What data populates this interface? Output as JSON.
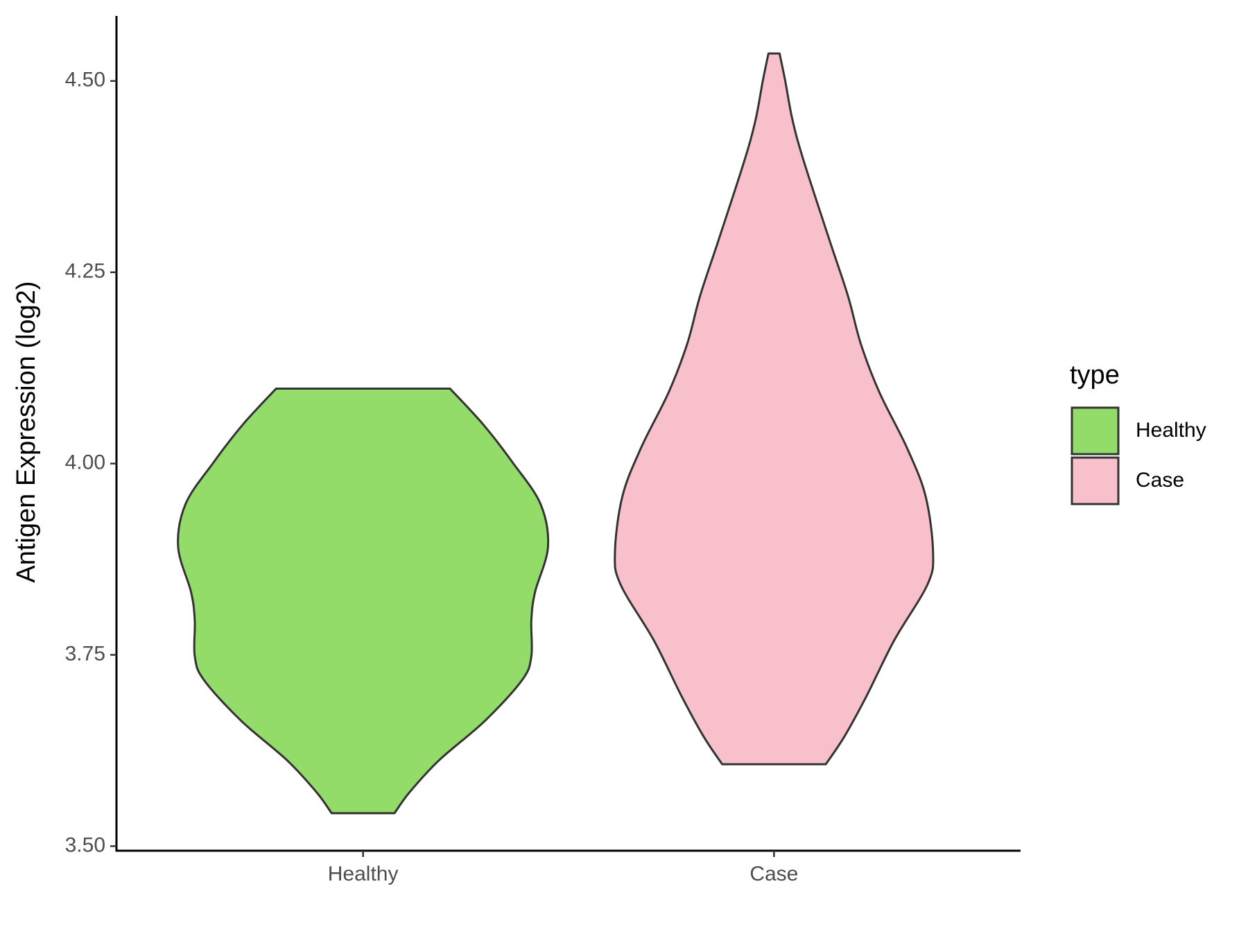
{
  "chart_data": {
    "type": "violin",
    "y_label": "Antigen Expression (log2)",
    "categories": [
      "Healthy",
      "Case"
    ],
    "legend_title": "type",
    "legend_position": "right",
    "ylim": [
      3.494,
      4.585
    ],
    "yticks": [
      {
        "value": 3.5,
        "label": "3.50"
      },
      {
        "value": 3.75,
        "label": "3.75"
      },
      {
        "value": 4.0,
        "label": "4.00"
      },
      {
        "value": 4.25,
        "label": "4.25"
      },
      {
        "value": 4.5,
        "label": "4.50"
      }
    ],
    "series": [
      {
        "name": "Healthy",
        "color": "#93dc6a",
        "values": [
          4.098,
          4.051,
          4.001,
          3.947,
          3.891,
          3.832,
          3.795,
          3.748,
          3.717,
          3.664,
          3.612,
          3.57,
          3.543
        ],
        "density": [
          0.47,
          0.65,
          0.81,
          0.96,
          1.0,
          0.93,
          0.91,
          0.91,
          0.86,
          0.66,
          0.41,
          0.25,
          0.17
        ]
      },
      {
        "name": "Case",
        "color": "#f7c0cb",
        "values": [
          4.536,
          4.501,
          4.449,
          4.396,
          4.292,
          4.219,
          4.156,
          4.093,
          4.02,
          3.957,
          3.884,
          3.842,
          3.769,
          3.696,
          3.643,
          3.607
        ],
        "density": [
          0.03,
          0.06,
          0.1,
          0.16,
          0.3,
          0.4,
          0.47,
          0.57,
          0.72,
          0.82,
          0.86,
          0.83,
          0.65,
          0.5,
          0.38,
          0.28
        ]
      }
    ]
  }
}
